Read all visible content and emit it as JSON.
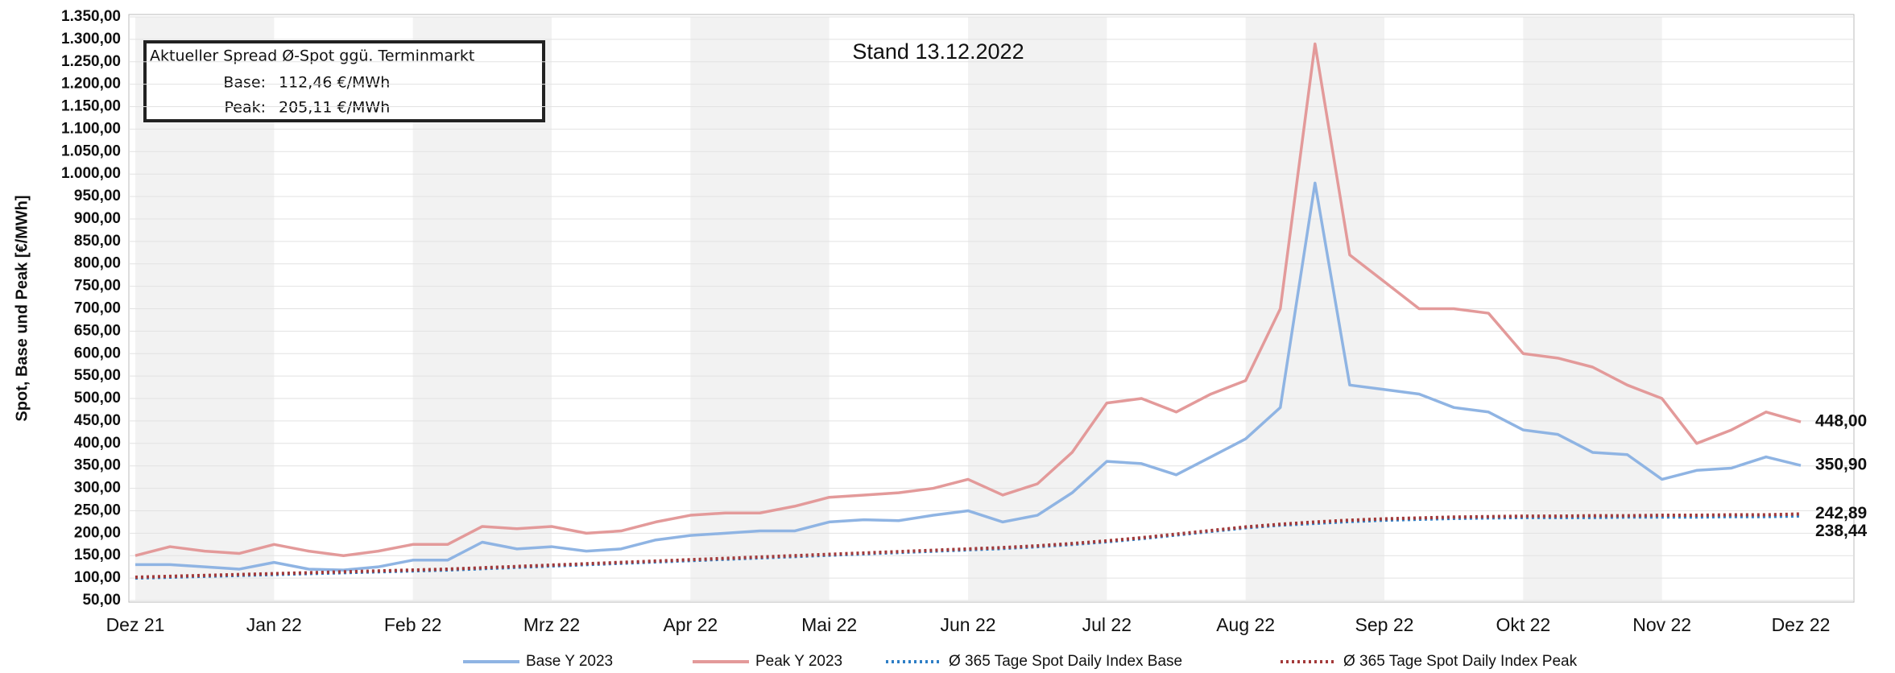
{
  "chart_data": {
    "type": "line",
    "ylabel": "Spot, Base und Peak [€/MWh]",
    "annotation": "Stand 13.12.2022",
    "info_box": {
      "title": "Aktueller Spread Ø-Spot ggü. Terminmarkt",
      "rows": [
        [
          "Base:",
          "112,46 €/MWh"
        ],
        [
          "Peak:",
          "205,11 €/MWh"
        ]
      ]
    },
    "categories": [
      "Dez 21",
      null,
      null,
      null,
      "Jan 22",
      null,
      null,
      null,
      "Feb 22",
      null,
      null,
      null,
      "Mrz 22",
      null,
      null,
      null,
      "Apr 22",
      null,
      null,
      null,
      "Mai 22",
      null,
      null,
      null,
      "Jun 22",
      null,
      null,
      null,
      "Jul 22",
      null,
      null,
      null,
      "Aug 22",
      null,
      null,
      null,
      "Sep 22",
      null,
      null,
      null,
      "Okt 22",
      null,
      null,
      null,
      "Nov 22",
      null,
      null,
      null,
      "Dez 22"
    ],
    "ylim": [
      50,
      1350
    ],
    "yticks": [
      {
        "value": 50,
        "label": "50,00"
      },
      {
        "value": 100,
        "label": "100,00"
      },
      {
        "value": 150,
        "label": "150,00"
      },
      {
        "value": 200,
        "label": "200,00"
      },
      {
        "value": 250,
        "label": "250,00"
      },
      {
        "value": 300,
        "label": "300,00"
      },
      {
        "value": 350,
        "label": "350,00"
      },
      {
        "value": 400,
        "label": "400,00"
      },
      {
        "value": 450,
        "label": "450,00"
      },
      {
        "value": 500,
        "label": "500,00"
      },
      {
        "value": 550,
        "label": "550,00"
      },
      {
        "value": 600,
        "label": "600,00"
      },
      {
        "value": 650,
        "label": "650,00"
      },
      {
        "value": 700,
        "label": "700,00"
      },
      {
        "value": 750,
        "label": "750,00"
      },
      {
        "value": 800,
        "label": "800,00"
      },
      {
        "value": 850,
        "label": "850,00"
      },
      {
        "value": 900,
        "label": "900,00"
      },
      {
        "value": 950,
        "label": "950,00"
      },
      {
        "value": 1000,
        "label": "1.000,00"
      },
      {
        "value": 1050,
        "label": "1.050,00"
      },
      {
        "value": 1100,
        "label": "1.100,00"
      },
      {
        "value": 1150,
        "label": "1.150,00"
      },
      {
        "value": 1200,
        "label": "1.200,00"
      },
      {
        "value": 1250,
        "label": "1.250,00"
      },
      {
        "value": 1300,
        "label": "1.300,00"
      },
      {
        "value": 1350,
        "label": "1.350,00"
      }
    ],
    "grid": true,
    "series": [
      {
        "name": "Base Y 2023",
        "color": "#8fb4e3",
        "style": "solid",
        "end_label": "350,90",
        "values": [
          130,
          130,
          125,
          120,
          135,
          120,
          118,
          125,
          140,
          140,
          180,
          165,
          170,
          160,
          165,
          185,
          195,
          200,
          205,
          205,
          225,
          230,
          228,
          240,
          250,
          225,
          240,
          290,
          360,
          355,
          330,
          370,
          410,
          480,
          980,
          530,
          520,
          510,
          480,
          470,
          430,
          420,
          380,
          375,
          320,
          340,
          345,
          370,
          350.9
        ]
      },
      {
        "name": "Peak Y 2023",
        "color": "#e39a9a",
        "style": "solid",
        "end_label": "448,00",
        "values": [
          150,
          170,
          160,
          155,
          175,
          160,
          150,
          160,
          175,
          175,
          215,
          210,
          215,
          200,
          205,
          225,
          240,
          245,
          245,
          260,
          280,
          285,
          290,
          300,
          320,
          285,
          310,
          380,
          490,
          500,
          470,
          510,
          540,
          700,
          1290,
          820,
          760,
          700,
          700,
          690,
          600,
          590,
          570,
          530,
          500,
          400,
          430,
          470,
          448
        ]
      },
      {
        "name": "Ø 365 Tage Spot Daily Index Base",
        "color": "#2f7fc6",
        "style": "dotted",
        "end_label": "238,44",
        "values": [
          100,
          102,
          104,
          106,
          108,
          110,
          112,
          114,
          116,
          118,
          121,
          124,
          127,
          130,
          133,
          136,
          139,
          142,
          145,
          148,
          151,
          154,
          157,
          160,
          163,
          166,
          170,
          175,
          181,
          188,
          196,
          204,
          212,
          218,
          222,
          226,
          229,
          231,
          233,
          234,
          235,
          235,
          235,
          236,
          236,
          236,
          237,
          237,
          238.44
        ]
      },
      {
        "name": "Ø 365 Tage Spot Daily Index Peak",
        "color": "#a33a3a",
        "style": "dotted",
        "end_label": "242,89",
        "values": [
          102,
          104,
          106,
          108,
          110,
          112,
          114,
          116,
          118,
          120,
          123,
          126,
          129,
          132,
          135,
          138,
          141,
          144,
          147,
          150,
          153,
          156,
          159,
          162,
          165,
          168,
          172,
          177,
          183,
          190,
          198,
          206,
          214,
          220,
          225,
          229,
          232,
          234,
          236,
          237,
          238,
          238,
          239,
          239,
          240,
          240,
          241,
          241,
          242.89
        ]
      }
    ]
  }
}
